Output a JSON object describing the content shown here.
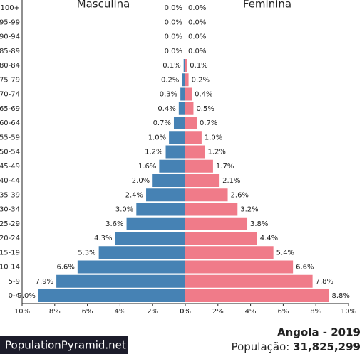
{
  "chart_data": {
    "type": "pyramid",
    "categories": [
      "100+",
      "95-99",
      "90-94",
      "85-89",
      "80-84",
      "75-79",
      "70-74",
      "65-69",
      "60-64",
      "55-59",
      "50-54",
      "45-49",
      "40-44",
      "35-39",
      "30-34",
      "25-29",
      "20-24",
      "15-19",
      "10-14",
      "5-9",
      "0-4"
    ],
    "series": [
      {
        "name": "Masculina",
        "color": "#4682b4",
        "values": [
          0.0,
          0.0,
          0.0,
          0.0,
          0.1,
          0.2,
          0.3,
          0.4,
          0.7,
          1.0,
          1.2,
          1.6,
          2.0,
          2.4,
          3.0,
          3.6,
          4.3,
          5.3,
          6.6,
          7.9,
          9.0
        ],
        "value_labels": [
          "0.0%",
          "0.0%",
          "0.0%",
          "0.0%",
          "0.1%",
          "0.2%",
          "0.3%",
          "0.4%",
          "0.7%",
          "1.0%",
          "1.2%",
          "1.6%",
          "2.0%",
          "2.4%",
          "3.0%",
          "3.6%",
          "4.3%",
          "5.3%",
          "6.6%",
          "7.9%",
          "9.0%"
        ]
      },
      {
        "name": "Feminina",
        "color": "#f07b89",
        "values": [
          0.0,
          0.0,
          0.0,
          0.0,
          0.1,
          0.2,
          0.4,
          0.5,
          0.7,
          1.0,
          1.2,
          1.7,
          2.1,
          2.6,
          3.2,
          3.8,
          4.4,
          5.4,
          6.6,
          7.8,
          8.8
        ],
        "value_labels": [
          "0.0%",
          "0.0%",
          "0.0%",
          "0.0%",
          "0.1%",
          "0.2%",
          "0.4%",
          "0.5%",
          "0.7%",
          "1.0%",
          "1.2%",
          "1.7%",
          "2.1%",
          "2.6%",
          "3.2%",
          "3.8%",
          "4.4%",
          "5.4%",
          "6.6%",
          "7.8%",
          "8.8%"
        ]
      }
    ],
    "xlim": [
      0,
      10
    ],
    "xticks": [
      {
        "value": 0,
        "label": "0%"
      },
      {
        "value": 2,
        "label": "2%"
      },
      {
        "value": 4,
        "label": "4%"
      },
      {
        "value": 6,
        "label": "6%"
      },
      {
        "value": 8,
        "label": "8%"
      },
      {
        "value": 10,
        "label": "10%"
      }
    ]
  },
  "footer": {
    "brand": "PopulationPyramid.net",
    "country_year": "Angola - 2019",
    "population_label": "População:",
    "population": "31,825,299"
  }
}
